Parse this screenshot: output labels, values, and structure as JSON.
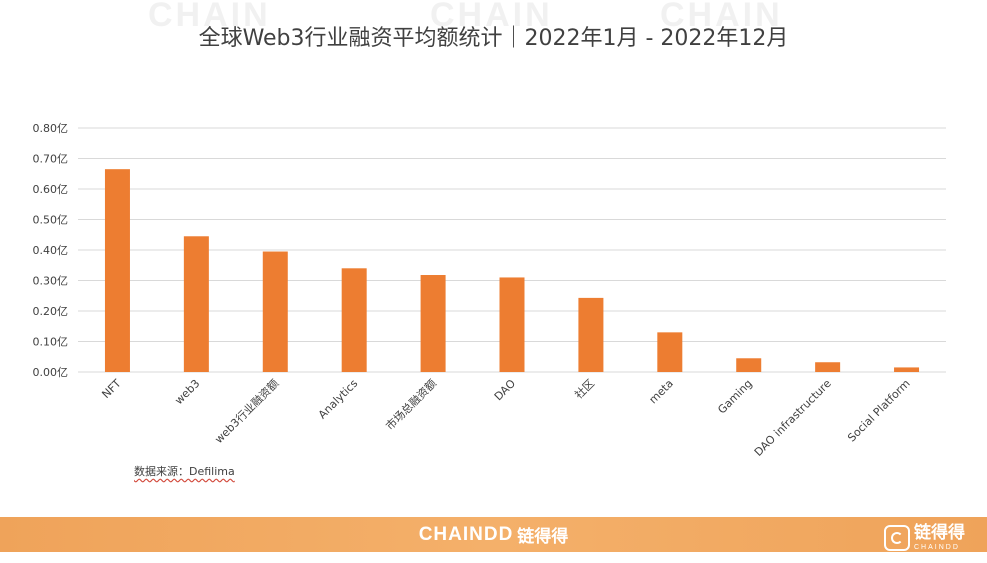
{
  "header": {
    "title": "全球Web3行业融资平均额统计｜2022年1月 - 2022年12月"
  },
  "watermark": {
    "text": "CHAIN"
  },
  "source": {
    "text": "数据来源：Defilima"
  },
  "footer": {
    "brand_en": "CHAINDD",
    "brand_cn": "链得得",
    "corner_cn": "链得得",
    "corner_en": "CHAINDD"
  },
  "colors": {
    "bar": "#ed7d31",
    "grid": "#d9d9d9",
    "text": "#404040",
    "footer": "#f0a45c"
  },
  "chart_data": {
    "type": "bar",
    "title": "全球Web3行业融资平均额统计｜2022年1月 - 2022年12月",
    "xlabel": "",
    "ylabel": "",
    "ylim": [
      0,
      0.8
    ],
    "y_ticks": [
      "0.00亿",
      "0.10亿",
      "0.20亿",
      "0.30亿",
      "0.40亿",
      "0.50亿",
      "0.60亿",
      "0.70亿",
      "0.80亿"
    ],
    "grid": true,
    "legend": "none",
    "categories": [
      "NFT",
      "web3",
      "web3行业融资额",
      "Analytics",
      "市场总融资额",
      "DAO",
      "社区",
      "meta",
      "Gaming",
      "DAO infrastructure",
      "Social Platform"
    ],
    "values": [
      0.665,
      0.445,
      0.395,
      0.34,
      0.318,
      0.31,
      0.243,
      0.13,
      0.045,
      0.032,
      0.015
    ]
  }
}
